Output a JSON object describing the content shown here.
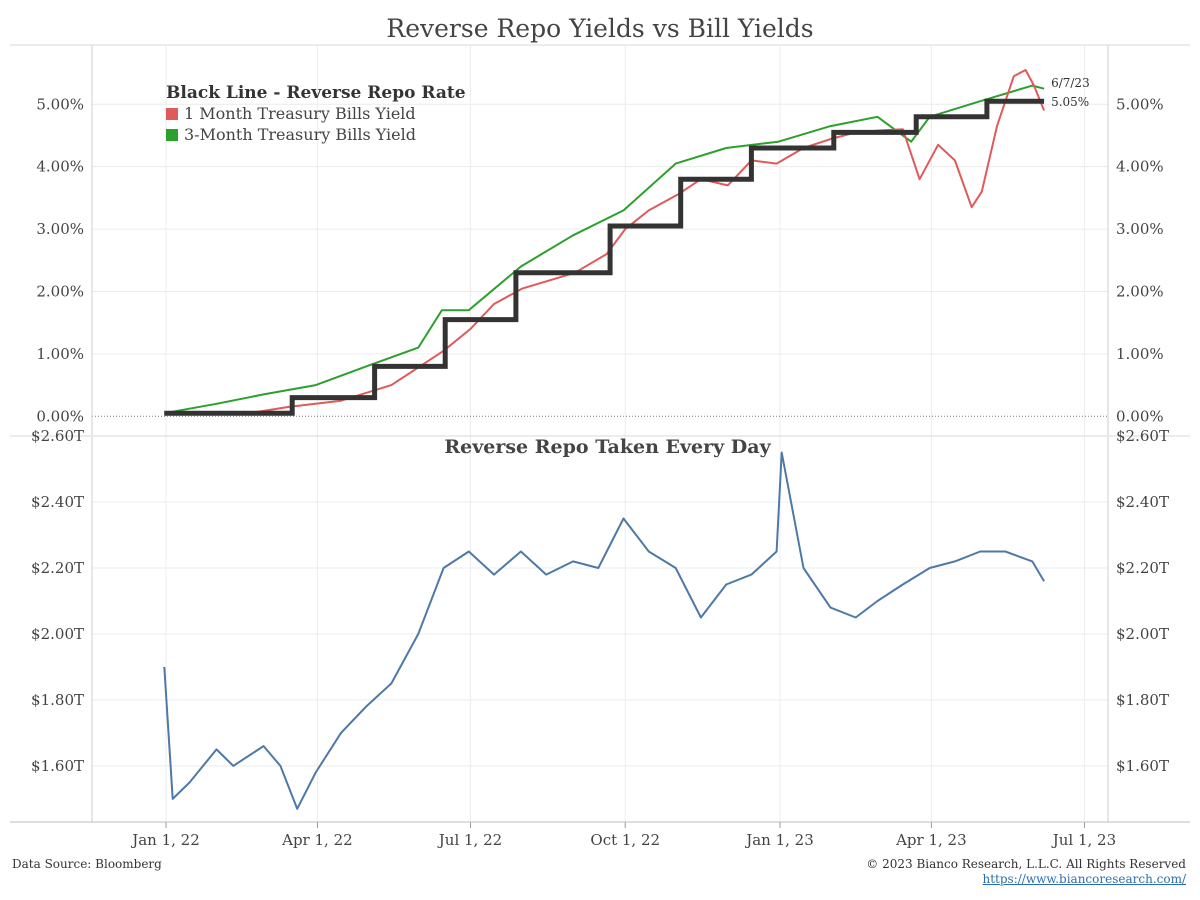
{
  "title": "Reverse Repo Yields vs Bill Yields",
  "legend": {
    "title": "Black Line - Reverse Repo Rate",
    "items": [
      {
        "label": "1 Month Treasury Bills Yield",
        "color": "#e05a5a"
      },
      {
        "label": "3-Month Treasury Bills Yield",
        "color": "#2ca02c"
      }
    ]
  },
  "footer": {
    "source": "Data Source: Bloomberg",
    "copyright": "© 2023 Bianco Research, L.L.C. All Rights Reserved",
    "url": "https://www.biancoresearch.com/"
  },
  "chart_data": [
    {
      "type": "line",
      "title": "Reverse Repo Yields vs Bill Yields",
      "y_tick_labels": [
        "0.00%",
        "1.00%",
        "2.00%",
        "3.00%",
        "4.00%",
        "5.00%"
      ],
      "ylim": [
        -0.3,
        5.95
      ],
      "x_tick_labels": [
        "Jan 1, 22",
        "Apr 1, 22",
        "Jul 1, 22",
        "Oct 1, 22",
        "Jan 1, 23",
        "Apr 1, 23",
        "Jul 1, 23"
      ],
      "grid": true,
      "legend_position": "top-left",
      "annotations": [
        {
          "text": "6/7/23"
        },
        {
          "text": "5.05%"
        }
      ],
      "series": [
        {
          "name": "Black Line - Reverse Repo Rate",
          "color": "#333333",
          "x": [
            "2021-12-31",
            "2022-03-17",
            "2022-05-05",
            "2022-06-16",
            "2022-07-28",
            "2022-09-22",
            "2022-11-03",
            "2022-12-15",
            "2023-02-02",
            "2023-03-23",
            "2023-05-04",
            "2023-06-07"
          ],
          "y": [
            0.05,
            0.3,
            0.8,
            1.55,
            2.3,
            3.05,
            3.8,
            4.3,
            4.55,
            4.8,
            5.05,
            5.05
          ]
        },
        {
          "name": "1 Month Treasury Bills Yield",
          "color": "#e05a5a",
          "x": [
            "2021-12-31",
            "2022-02-15",
            "2022-03-15",
            "2022-04-15",
            "2022-05-15",
            "2022-06-15",
            "2022-07-01",
            "2022-07-15",
            "2022-08-01",
            "2022-09-01",
            "2022-09-20",
            "2022-10-01",
            "2022-10-15",
            "2022-11-01",
            "2022-11-15",
            "2022-12-01",
            "2022-12-15",
            "2022-12-30",
            "2023-01-15",
            "2023-02-01",
            "2023-02-15",
            "2023-03-01",
            "2023-03-15",
            "2023-03-25",
            "2023-04-05",
            "2023-04-15",
            "2023-04-25",
            "2023-05-01",
            "2023-05-10",
            "2023-05-20",
            "2023-05-27",
            "2023-06-01",
            "2023-06-07"
          ],
          "y": [
            0.03,
            0.03,
            0.15,
            0.25,
            0.5,
            1.05,
            1.4,
            1.8,
            2.05,
            2.3,
            2.6,
            3.0,
            3.3,
            3.55,
            3.8,
            3.7,
            4.1,
            4.05,
            4.3,
            4.45,
            4.55,
            4.58,
            4.6,
            3.8,
            4.35,
            4.1,
            3.35,
            3.6,
            4.65,
            5.45,
            5.55,
            5.3,
            4.9
          ]
        },
        {
          "name": "3-Month Treasury Bills Yield",
          "color": "#2ca02c",
          "x": [
            "2021-12-31",
            "2022-01-31",
            "2022-02-28",
            "2022-03-31",
            "2022-04-30",
            "2022-05-31",
            "2022-06-14",
            "2022-06-30",
            "2022-07-31",
            "2022-08-31",
            "2022-09-30",
            "2022-10-31",
            "2022-11-30",
            "2022-12-31",
            "2023-01-31",
            "2023-02-28",
            "2023-03-20",
            "2023-03-31",
            "2023-04-30",
            "2023-05-31",
            "2023-06-07"
          ],
          "y": [
            0.05,
            0.2,
            0.35,
            0.5,
            0.8,
            1.1,
            1.7,
            1.7,
            2.4,
            2.9,
            3.3,
            4.05,
            4.3,
            4.4,
            4.65,
            4.8,
            4.4,
            4.8,
            5.05,
            5.3,
            5.25
          ]
        }
      ]
    },
    {
      "type": "line",
      "title": "Reverse Repo Taken Every Day",
      "y_tick_labels": [
        "$1.60T",
        "$1.80T",
        "$2.00T",
        "$2.20T",
        "$2.40T",
        "$2.60T"
      ],
      "ylim": [
        1.43,
        2.6
      ],
      "unit": "trillion USD",
      "x_tick_labels": [
        "Jan 1, 22",
        "Apr 1, 22",
        "Jul 1, 22",
        "Oct 1, 22",
        "Jan 1, 23",
        "Apr 1, 23",
        "Jul 1, 23"
      ],
      "grid": true,
      "series": [
        {
          "color": "#4e79a7",
          "x": [
            "2021-12-31",
            "2022-01-05",
            "2022-01-15",
            "2022-01-31",
            "2022-02-10",
            "2022-02-28",
            "2022-03-10",
            "2022-03-20",
            "2022-03-31",
            "2022-04-15",
            "2022-04-30",
            "2022-05-15",
            "2022-05-31",
            "2022-06-15",
            "2022-06-30",
            "2022-07-15",
            "2022-07-31",
            "2022-08-15",
            "2022-08-31",
            "2022-09-15",
            "2022-09-30",
            "2022-10-15",
            "2022-10-31",
            "2022-11-15",
            "2022-11-30",
            "2022-12-15",
            "2022-12-30",
            "2023-01-02",
            "2023-01-15",
            "2023-01-31",
            "2023-02-15",
            "2023-02-28",
            "2023-03-15",
            "2023-03-31",
            "2023-04-15",
            "2023-04-30",
            "2023-05-15",
            "2023-05-31",
            "2023-06-07"
          ],
          "y": [
            1.9,
            1.5,
            1.55,
            1.65,
            1.6,
            1.66,
            1.6,
            1.47,
            1.58,
            1.7,
            1.78,
            1.85,
            2.0,
            2.2,
            2.25,
            2.18,
            2.25,
            2.18,
            2.22,
            2.2,
            2.35,
            2.25,
            2.2,
            2.05,
            2.15,
            2.18,
            2.25,
            2.55,
            2.2,
            2.08,
            2.05,
            2.1,
            2.15,
            2.2,
            2.22,
            2.25,
            2.25,
            2.22,
            2.16
          ]
        }
      ]
    }
  ]
}
